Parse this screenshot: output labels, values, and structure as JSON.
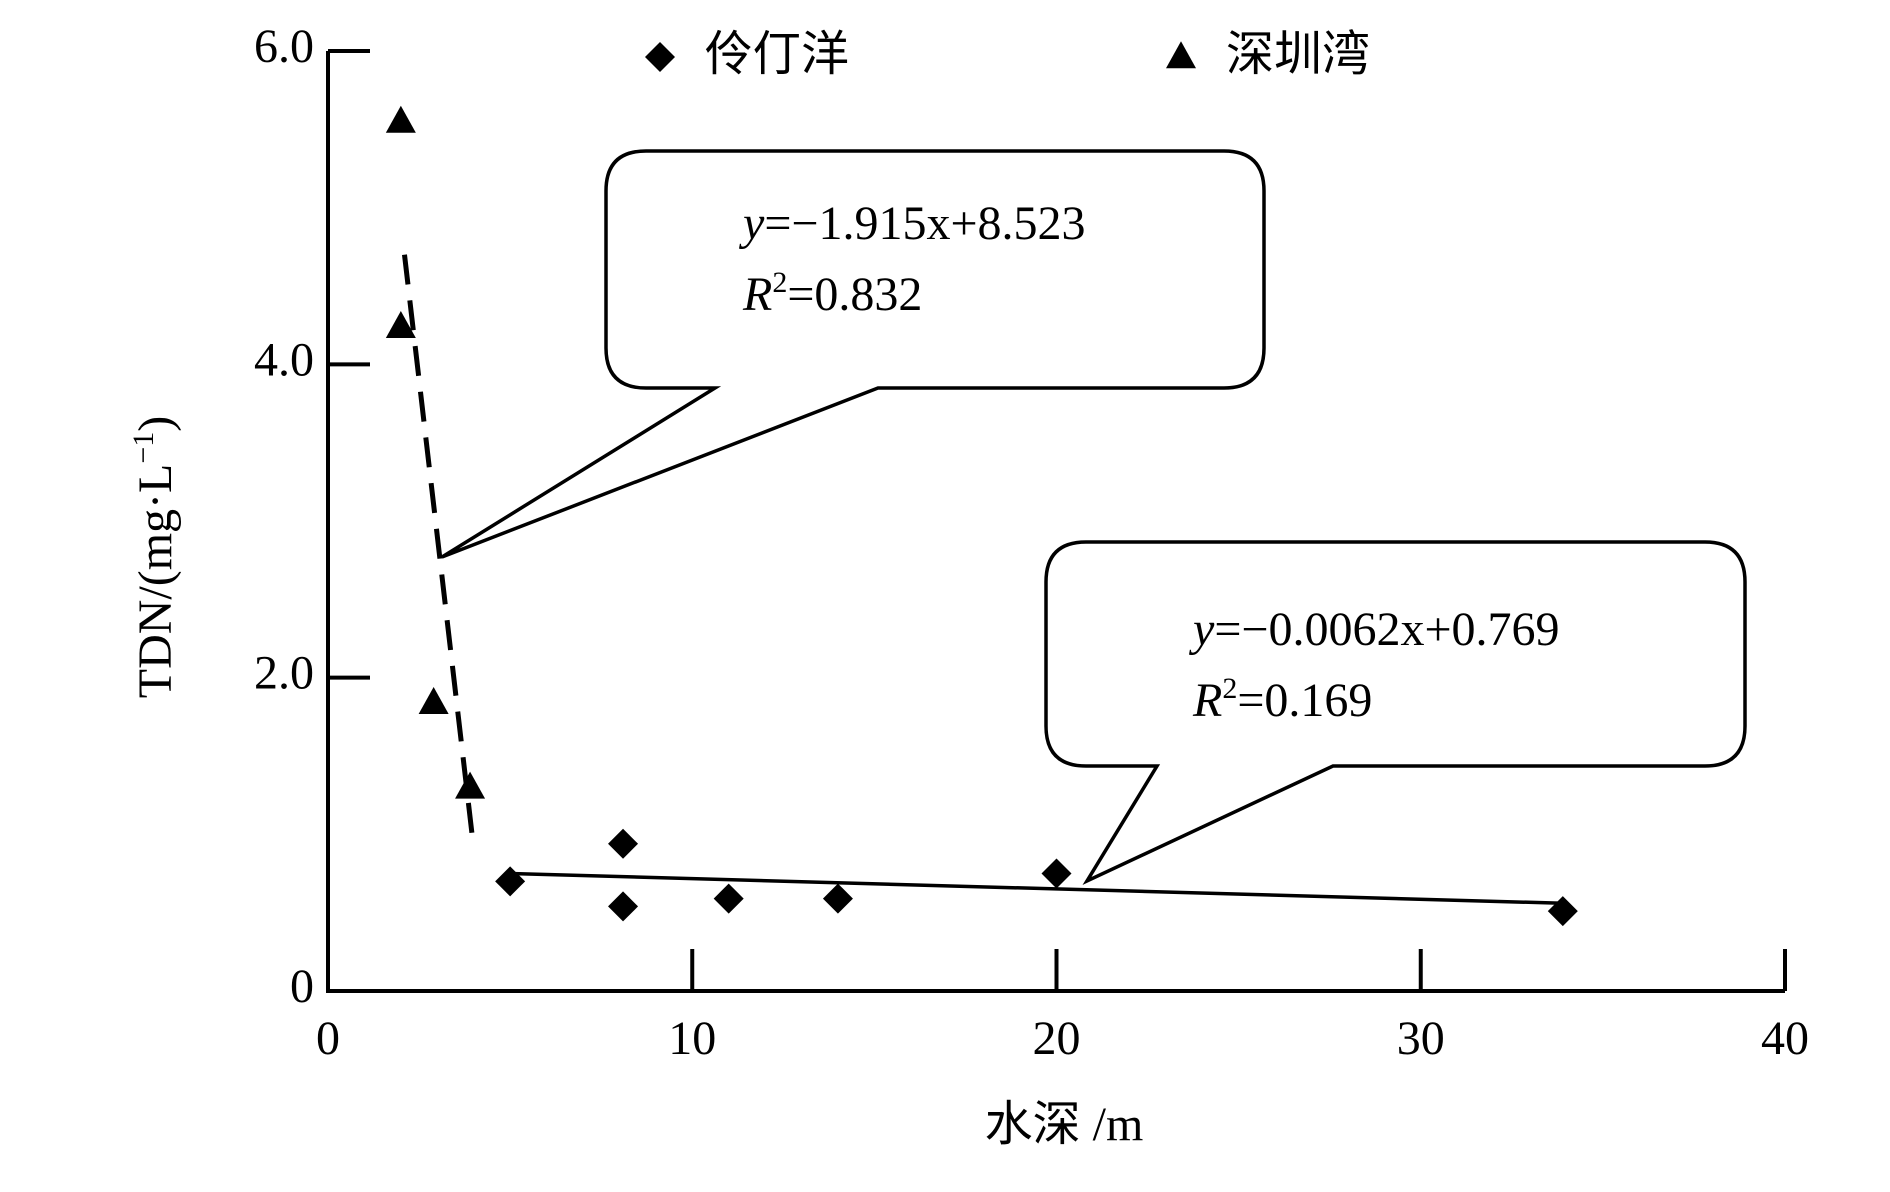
{
  "chart_data": {
    "type": "scatter",
    "xlabel": "水深 /m",
    "ylabel": [
      "TDN/(mg·L",
      "−1",
      ")"
    ],
    "xlim": [
      0,
      40
    ],
    "xticks": [
      0,
      10,
      20,
      30,
      40
    ],
    "ylim": [
      0,
      6
    ],
    "yticks": [
      0,
      {
        "value": 2,
        "label": "2.0"
      },
      {
        "value": 4,
        "label": "4.0"
      },
      {
        "value": 6,
        "label": "6.0"
      }
    ],
    "series": [
      {
        "name": "伶仃洋",
        "marker": "diamond",
        "color": "#000000",
        "x": [
          5.0,
          8.1,
          8.1,
          11.0,
          14.0,
          20.0,
          33.9
        ],
        "values": [
          0.7,
          0.94,
          0.54,
          0.59,
          0.59,
          0.75,
          0.51
        ]
      },
      {
        "name": "深圳湾",
        "marker": "triangle",
        "color": "#000000",
        "x": [
          2.0,
          2.0,
          2.9,
          3.9
        ],
        "values": [
          5.55,
          4.24,
          1.84,
          1.3
        ]
      }
    ],
    "trendlines": [
      {
        "dashed": true,
        "x": [
          2.1,
          4.0
        ],
        "values": [
          4.7,
          0.91
        ]
      },
      {
        "dashed": false,
        "x": [
          5.0,
          33.9
        ],
        "values": [
          0.75,
          0.56
        ]
      }
    ],
    "annotations": [
      {
        "eq_var": "y",
        "eq_text": "=−1.915x+8.523",
        "r2_symbol": "R",
        "r2_sup": "2",
        "r2_text": "=0.832"
      },
      {
        "eq_var": "y",
        "eq_text": "=−0.0062x+0.769",
        "r2_symbol": "R",
        "r2_sup": "2",
        "r2_text": "=0.169"
      }
    ]
  }
}
